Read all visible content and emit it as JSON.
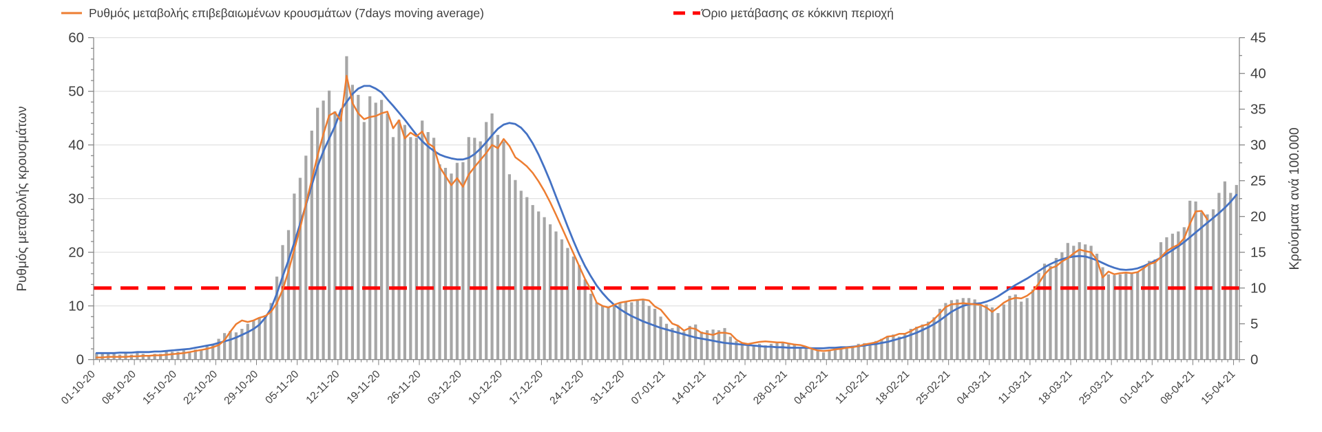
{
  "legend": {
    "series1_label": "Ρυθμός μεταβολής επιβεβαιωμένων κρουσμάτων (7days moving average)",
    "threshold_label": "Όριο μετάβασης σε κόκκινη περιοχή"
  },
  "colors": {
    "bar": "#a6a6a6",
    "moving_average": "#ed7d31",
    "trend": "#4472c4",
    "threshold": "#ff0000",
    "grid": "#d9d9d9",
    "axis": "#7f7f7f",
    "text": "#404040"
  },
  "chart_data": {
    "type": "combo: daily bars + two lines + dashed threshold",
    "grid": "horizontal gridlines on",
    "legend_position": "top-left",
    "n_points": 197,
    "days_per_tick": 7,
    "x_tick_labels": [
      "01-10-20",
      "08-10-20",
      "15-10-20",
      "22-10-20",
      "29-10-20",
      "05-11-20",
      "12-11-20",
      "19-11-20",
      "26-11-20",
      "03-12-20",
      "10-12-20",
      "17-12-20",
      "24-12-20",
      "31-12-20",
      "07-01-21",
      "14-01-21",
      "21-01-21",
      "28-01-21",
      "04-02-21",
      "11-02-21",
      "18-02-21",
      "25-02-21",
      "04-03-21",
      "11-03-21",
      "18-03-21",
      "25-03-21",
      "01-04-21",
      "08-04-21",
      "15-04-21"
    ],
    "left_axis": {
      "title": "Ρυθμός μεταβολής κρουσμάτων",
      "min": 0,
      "max": 60,
      "tick_step": 10,
      "minor_step": 2
    },
    "right_axis": {
      "title": "Κρούσματα ανά 100.000",
      "min": 0,
      "max": 45,
      "tick_step": 5,
      "minor_step": 2.5
    },
    "threshold": {
      "value": 10,
      "axis": "right"
    },
    "series": [
      {
        "id": "daily-cases-bars",
        "type": "bar",
        "axis": "right",
        "values": [
          0.9,
          0.9,
          1.0,
          0.9,
          0.7,
          0.9,
          0.7,
          1.0,
          0.8,
          0.6,
          0.8,
          0.8,
          1.1,
          1.1,
          1.1,
          1.3,
          1.1,
          1.4,
          1.3,
          2.0,
          2.2,
          2.9,
          3.7,
          4.0,
          3.8,
          4.3,
          5.0,
          5.4,
          5.9,
          6.2,
          7.9,
          11.6,
          16.0,
          18.1,
          23.2,
          25.4,
          28.5,
          32.0,
          35.2,
          36.2,
          37.6,
          34.7,
          34.4,
          42.4,
          38.4,
          37.0,
          33.2,
          36.8,
          35.9,
          36.3,
          34.4,
          31.1,
          33.5,
          32.8,
          31.1,
          31.0,
          33.4,
          31.8,
          31.0,
          27.3,
          26.8,
          26.0,
          27.5,
          27.6,
          31.1,
          31.0,
          30.5,
          33.2,
          34.4,
          31.4,
          30.5,
          25.9,
          25.1,
          23.6,
          22.7,
          21.6,
          20.7,
          19.9,
          18.9,
          17.9,
          16.8,
          15.6,
          14.4,
          13.2,
          11.2,
          9.2,
          8.0,
          7.5,
          7.3,
          7.5,
          8.0,
          8.1,
          8.0,
          8.3,
          8.4,
          7.5,
          7.1,
          6.0,
          5.0,
          4.4,
          4.7,
          3.9,
          4.7,
          4.9,
          3.9,
          4.1,
          4.2,
          4.1,
          4.4,
          3.2,
          2.6,
          2.3,
          2.0,
          2.0,
          2.2,
          2.0,
          2.2,
          2.3,
          2.3,
          2.2,
          2.2,
          1.7,
          1.6,
          1.4,
          1.3,
          1.0,
          1.4,
          1.6,
          1.6,
          1.7,
          1.9,
          2.2,
          2.3,
          2.2,
          2.6,
          2.9,
          3.3,
          3.5,
          3.2,
          3.5,
          4.3,
          4.6,
          4.9,
          5.3,
          5.9,
          7.1,
          7.9,
          8.3,
          8.4,
          8.6,
          8.6,
          8.4,
          7.5,
          7.7,
          7.3,
          6.5,
          7.7,
          8.9,
          9.1,
          8.1,
          8.6,
          9.8,
          12.1,
          13.4,
          13.1,
          14.2,
          15.0,
          16.3,
          15.9,
          16.4,
          16.1,
          15.9,
          14.8,
          12.9,
          11.9,
          11.8,
          11.9,
          12.2,
          12.1,
          12.2,
          12.8,
          13.8,
          14.0,
          16.4,
          17.1,
          17.6,
          17.9,
          18.5,
          22.2,
          22.1,
          20.6,
          20.3,
          21.0,
          23.3,
          24.9,
          23.3,
          24.4
        ]
      },
      {
        "id": "trend-line",
        "type": "line",
        "axis": "left",
        "values": [
          1.2,
          1.2,
          1.2,
          1.2,
          1.3,
          1.3,
          1.3,
          1.4,
          1.4,
          1.4,
          1.5,
          1.5,
          1.6,
          1.7,
          1.8,
          1.9,
          2.0,
          2.2,
          2.4,
          2.6,
          2.8,
          3.1,
          3.4,
          3.7,
          4.1,
          4.6,
          5.1,
          5.7,
          6.5,
          7.8,
          9.5,
          12.3,
          15.5,
          18.5,
          21.8,
          25.3,
          28.8,
          32.5,
          36.0,
          38.8,
          41.2,
          43.5,
          46.5,
          48.0,
          49.5,
          50.5,
          51.0,
          51.0,
          50.5,
          49.8,
          48.5,
          47.3,
          46.0,
          44.7,
          43.3,
          41.9,
          40.7,
          39.7,
          38.9,
          38.2,
          37.8,
          37.5,
          37.3,
          37.3,
          37.6,
          38.3,
          39.3,
          40.5,
          41.8,
          43.0,
          43.8,
          44.1,
          43.9,
          43.2,
          42.0,
          40.3,
          38.2,
          35.8,
          33.2,
          30.4,
          27.6,
          24.8,
          22.1,
          19.6,
          17.4,
          15.5,
          13.8,
          12.4,
          11.2,
          10.2,
          9.4,
          8.7,
          8.1,
          7.6,
          7.1,
          6.7,
          6.3,
          5.9,
          5.6,
          5.3,
          5.0,
          4.7,
          4.4,
          4.1,
          3.9,
          3.7,
          3.5,
          3.3,
          3.1,
          3.0,
          2.9,
          2.8,
          2.7,
          2.6,
          2.5,
          2.4,
          2.4,
          2.3,
          2.3,
          2.2,
          2.2,
          2.2,
          2.2,
          2.1,
          2.1,
          2.1,
          2.2,
          2.2,
          2.3,
          2.3,
          2.4,
          2.5,
          2.6,
          2.8,
          2.9,
          3.1,
          3.3,
          3.6,
          3.9,
          4.2,
          4.6,
          5.0,
          5.5,
          6.0,
          6.6,
          7.3,
          8.1,
          8.9,
          9.5,
          10.0,
          10.3,
          10.4,
          10.5,
          10.8,
          11.2,
          11.8,
          12.5,
          13.2,
          13.9,
          14.5,
          15.1,
          15.8,
          16.5,
          17.2,
          17.8,
          18.3,
          18.7,
          19.0,
          19.2,
          19.3,
          19.2,
          18.9,
          18.5,
          18.0,
          17.5,
          17.1,
          16.8,
          16.7,
          16.8,
          17.0,
          17.4,
          17.9,
          18.4,
          19.0,
          19.7,
          20.4,
          21.1,
          21.9,
          22.8,
          23.7,
          24.6,
          25.5,
          26.4,
          27.3,
          28.3,
          29.4,
          30.7
        ]
      },
      {
        "id": "moving-average-line",
        "type": "line",
        "axis": "left",
        "values": [
          0.4,
          0.4,
          0.5,
          0.5,
          0.5,
          0.5,
          0.6,
          0.6,
          0.7,
          0.7,
          0.8,
          0.8,
          0.9,
          1.0,
          1.1,
          1.2,
          1.4,
          1.6,
          1.8,
          2.0,
          2.3,
          2.7,
          3.6,
          5.2,
          6.6,
          7.3,
          7.0,
          7.3,
          7.8,
          8.1,
          8.9,
          10.5,
          13.0,
          16.5,
          20.5,
          24.5,
          29.0,
          33.5,
          38.0,
          42.0,
          45.5,
          46.1,
          44.5,
          52.9,
          47.8,
          45.9,
          44.8,
          45.2,
          45.4,
          45.9,
          46.2,
          43.1,
          44.6,
          41.2,
          42.3,
          41.6,
          42.5,
          40.3,
          39.6,
          35.9,
          34.2,
          32.5,
          33.8,
          32.2,
          34.5,
          35.9,
          37.2,
          38.5,
          40.0,
          39.4,
          41.1,
          39.8,
          37.7,
          36.9,
          36.0,
          34.8,
          33.2,
          31.4,
          29.3,
          27.0,
          24.6,
          22.2,
          19.8,
          17.4,
          15.0,
          13.0,
          10.6,
          10.0,
          9.7,
          10.2,
          10.6,
          10.8,
          11.0,
          11.1,
          11.2,
          11.0,
          9.9,
          9.3,
          8.0,
          6.7,
          6.3,
          5.4,
          5.9,
          5.7,
          5.0,
          4.8,
          4.6,
          5.0,
          5.0,
          4.8,
          3.7,
          3.1,
          2.9,
          3.1,
          3.3,
          3.4,
          3.3,
          3.2,
          3.2,
          3.0,
          2.8,
          2.7,
          2.4,
          2.0,
          1.7,
          1.6,
          1.7,
          1.9,
          2.0,
          2.2,
          2.3,
          2.5,
          2.8,
          3.0,
          3.2,
          3.7,
          4.3,
          4.4,
          4.8,
          4.8,
          5.3,
          5.9,
          6.3,
          6.6,
          7.5,
          8.6,
          9.8,
          10.3,
          10.4,
          10.5,
          10.4,
          10.3,
          10.2,
          9.7,
          8.9,
          9.7,
          10.6,
          11.2,
          11.5,
          11.4,
          11.9,
          12.7,
          14.2,
          15.9,
          17.0,
          17.4,
          18.3,
          18.9,
          19.8,
          20.5,
          20.2,
          20.0,
          18.6,
          15.3,
          16.4,
          15.9,
          16.1,
          16.2,
          16.1,
          16.3,
          17.0,
          17.8,
          18.1,
          19.1,
          20.2,
          20.9,
          21.4,
          22.6,
          25.3,
          27.6,
          27.7,
          26.1,
          null,
          null,
          null,
          null,
          null
        ]
      }
    ]
  }
}
